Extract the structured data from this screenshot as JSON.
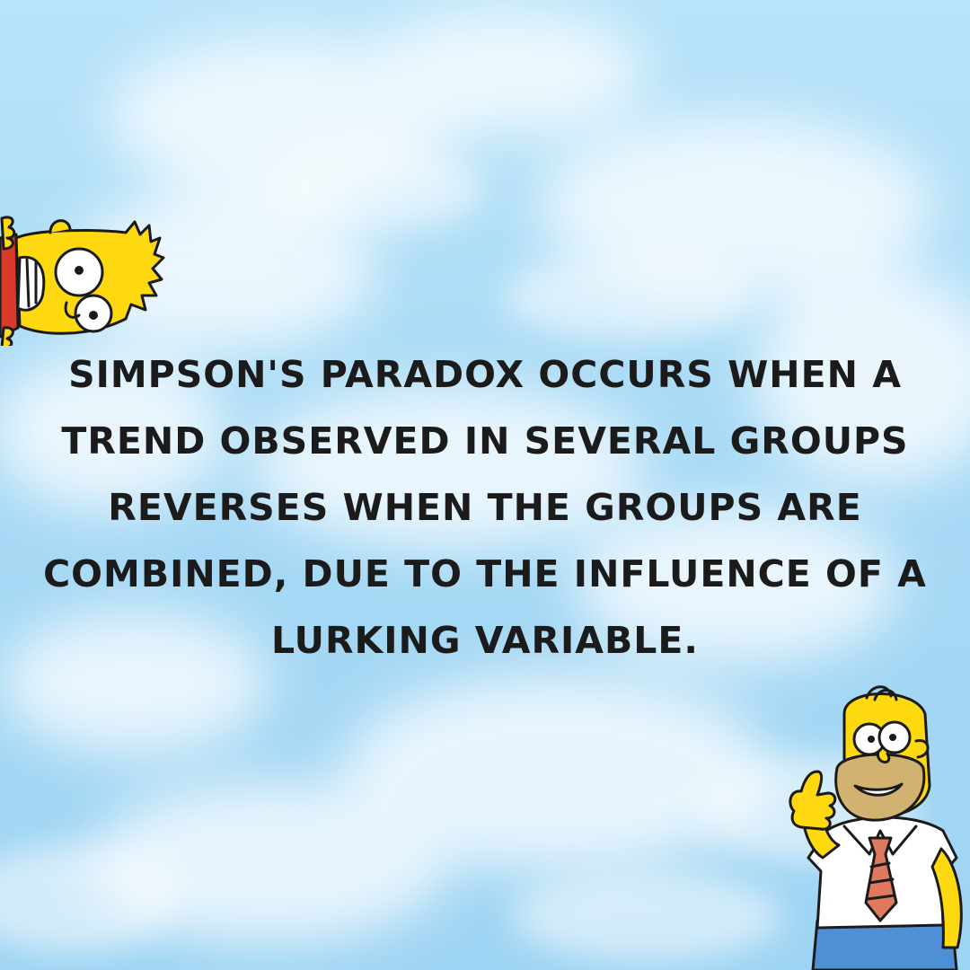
{
  "caption": {
    "text": "SIMPSON'S PARADOX OCCURS WHEN A TREND OBSERVED IN SEVERAL GROUPS REVERSES WHEN THE GROUPS ARE COMBINED, DUE TO THE INFLUENCE OF A LURKING VARIABLE."
  },
  "characters": {
    "left": "bart-simpson-peeking",
    "right": "homer-simpson-thumbs-up"
  },
  "colors": {
    "sky": "#a9dcf7",
    "cloud": "#ffffff",
    "text": "#1b1b1b",
    "simpson_yellow": "#fed90f",
    "shirt": "#ffffff",
    "tie": "#e07a5f",
    "pants": "#4f8fd6"
  }
}
